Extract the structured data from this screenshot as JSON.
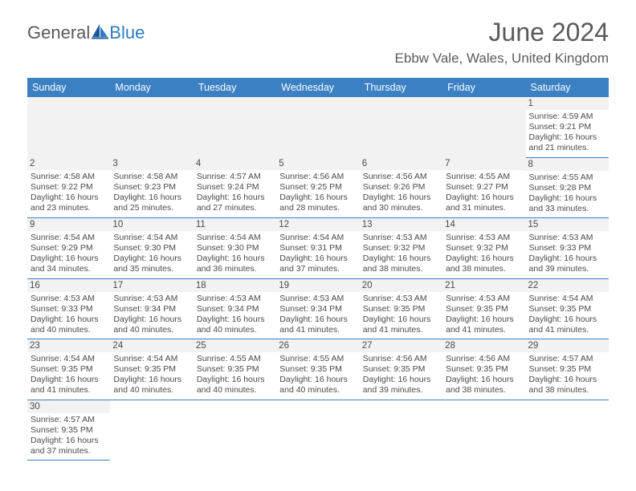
{
  "brand": {
    "part1": "General",
    "part2": "Blue"
  },
  "title": "June 2024",
  "location": "Ebbw Vale, Wales, United Kingdom",
  "colors": {
    "header_bg": "#3a80c3",
    "header_text": "#ffffff",
    "daynum_bg": "#f2f2f2",
    "border": "#3a80c3",
    "body_text": "#4a4a4a",
    "brand_blue": "#2f7bbf"
  },
  "weekdays": [
    "Sunday",
    "Monday",
    "Tuesday",
    "Wednesday",
    "Thursday",
    "Friday",
    "Saturday"
  ],
  "weeks": [
    [
      null,
      null,
      null,
      null,
      null,
      null,
      {
        "n": "1",
        "sr": "Sunrise: 4:59 AM",
        "ss": "Sunset: 9:21 PM",
        "dl": "Daylight: 16 hours and 21 minutes."
      }
    ],
    [
      {
        "n": "2",
        "sr": "Sunrise: 4:58 AM",
        "ss": "Sunset: 9:22 PM",
        "dl": "Daylight: 16 hours and 23 minutes."
      },
      {
        "n": "3",
        "sr": "Sunrise: 4:58 AM",
        "ss": "Sunset: 9:23 PM",
        "dl": "Daylight: 16 hours and 25 minutes."
      },
      {
        "n": "4",
        "sr": "Sunrise: 4:57 AM",
        "ss": "Sunset: 9:24 PM",
        "dl": "Daylight: 16 hours and 27 minutes."
      },
      {
        "n": "5",
        "sr": "Sunrise: 4:56 AM",
        "ss": "Sunset: 9:25 PM",
        "dl": "Daylight: 16 hours and 28 minutes."
      },
      {
        "n": "6",
        "sr": "Sunrise: 4:56 AM",
        "ss": "Sunset: 9:26 PM",
        "dl": "Daylight: 16 hours and 30 minutes."
      },
      {
        "n": "7",
        "sr": "Sunrise: 4:55 AM",
        "ss": "Sunset: 9:27 PM",
        "dl": "Daylight: 16 hours and 31 minutes."
      },
      {
        "n": "8",
        "sr": "Sunrise: 4:55 AM",
        "ss": "Sunset: 9:28 PM",
        "dl": "Daylight: 16 hours and 33 minutes."
      }
    ],
    [
      {
        "n": "9",
        "sr": "Sunrise: 4:54 AM",
        "ss": "Sunset: 9:29 PM",
        "dl": "Daylight: 16 hours and 34 minutes."
      },
      {
        "n": "10",
        "sr": "Sunrise: 4:54 AM",
        "ss": "Sunset: 9:30 PM",
        "dl": "Daylight: 16 hours and 35 minutes."
      },
      {
        "n": "11",
        "sr": "Sunrise: 4:54 AM",
        "ss": "Sunset: 9:30 PM",
        "dl": "Daylight: 16 hours and 36 minutes."
      },
      {
        "n": "12",
        "sr": "Sunrise: 4:54 AM",
        "ss": "Sunset: 9:31 PM",
        "dl": "Daylight: 16 hours and 37 minutes."
      },
      {
        "n": "13",
        "sr": "Sunrise: 4:53 AM",
        "ss": "Sunset: 9:32 PM",
        "dl": "Daylight: 16 hours and 38 minutes."
      },
      {
        "n": "14",
        "sr": "Sunrise: 4:53 AM",
        "ss": "Sunset: 9:32 PM",
        "dl": "Daylight: 16 hours and 38 minutes."
      },
      {
        "n": "15",
        "sr": "Sunrise: 4:53 AM",
        "ss": "Sunset: 9:33 PM",
        "dl": "Daylight: 16 hours and 39 minutes."
      }
    ],
    [
      {
        "n": "16",
        "sr": "Sunrise: 4:53 AM",
        "ss": "Sunset: 9:33 PM",
        "dl": "Daylight: 16 hours and 40 minutes."
      },
      {
        "n": "17",
        "sr": "Sunrise: 4:53 AM",
        "ss": "Sunset: 9:34 PM",
        "dl": "Daylight: 16 hours and 40 minutes."
      },
      {
        "n": "18",
        "sr": "Sunrise: 4:53 AM",
        "ss": "Sunset: 9:34 PM",
        "dl": "Daylight: 16 hours and 40 minutes."
      },
      {
        "n": "19",
        "sr": "Sunrise: 4:53 AM",
        "ss": "Sunset: 9:34 PM",
        "dl": "Daylight: 16 hours and 41 minutes."
      },
      {
        "n": "20",
        "sr": "Sunrise: 4:53 AM",
        "ss": "Sunset: 9:35 PM",
        "dl": "Daylight: 16 hours and 41 minutes."
      },
      {
        "n": "21",
        "sr": "Sunrise: 4:53 AM",
        "ss": "Sunset: 9:35 PM",
        "dl": "Daylight: 16 hours and 41 minutes."
      },
      {
        "n": "22",
        "sr": "Sunrise: 4:54 AM",
        "ss": "Sunset: 9:35 PM",
        "dl": "Daylight: 16 hours and 41 minutes."
      }
    ],
    [
      {
        "n": "23",
        "sr": "Sunrise: 4:54 AM",
        "ss": "Sunset: 9:35 PM",
        "dl": "Daylight: 16 hours and 41 minutes."
      },
      {
        "n": "24",
        "sr": "Sunrise: 4:54 AM",
        "ss": "Sunset: 9:35 PM",
        "dl": "Daylight: 16 hours and 40 minutes."
      },
      {
        "n": "25",
        "sr": "Sunrise: 4:55 AM",
        "ss": "Sunset: 9:35 PM",
        "dl": "Daylight: 16 hours and 40 minutes."
      },
      {
        "n": "26",
        "sr": "Sunrise: 4:55 AM",
        "ss": "Sunset: 9:35 PM",
        "dl": "Daylight: 16 hours and 40 minutes."
      },
      {
        "n": "27",
        "sr": "Sunrise: 4:56 AM",
        "ss": "Sunset: 9:35 PM",
        "dl": "Daylight: 16 hours and 39 minutes."
      },
      {
        "n": "28",
        "sr": "Sunrise: 4:56 AM",
        "ss": "Sunset: 9:35 PM",
        "dl": "Daylight: 16 hours and 38 minutes."
      },
      {
        "n": "29",
        "sr": "Sunrise: 4:57 AM",
        "ss": "Sunset: 9:35 PM",
        "dl": "Daylight: 16 hours and 38 minutes."
      }
    ],
    [
      {
        "n": "30",
        "sr": "Sunrise: 4:57 AM",
        "ss": "Sunset: 9:35 PM",
        "dl": "Daylight: 16 hours and 37 minutes."
      },
      null,
      null,
      null,
      null,
      null,
      null
    ]
  ]
}
